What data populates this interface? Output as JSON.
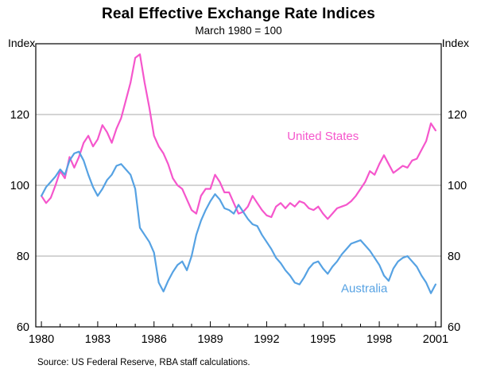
{
  "title": "Real Effective Exchange Rate Indices",
  "subtitle": "March 1980 = 100",
  "axis_unit_left": "Index",
  "axis_unit_right": "Index",
  "source": "Source: US Federal Reserve, RBA staff calculations.",
  "chart_data": {
    "type": "line",
    "title": "Real Effective Exchange Rate Indices",
    "subtitle": "March 1980 = 100",
    "xlabel": "",
    "ylabel": "Index",
    "xlim": [
      1979.7,
      2001.3
    ],
    "ylim": [
      60,
      140
    ],
    "y_ticks": [
      60,
      80,
      100,
      120
    ],
    "x_ticks": [
      1980,
      1983,
      1986,
      1989,
      1992,
      1995,
      1998,
      2001
    ],
    "grid": true,
    "grid_color": "#aaaaaa",
    "axis_color": "#000000",
    "legend_position": "inline-labels",
    "series": [
      {
        "name": "United States",
        "color": "#f556cc",
        "x_start": 1980.0,
        "x_step": 0.25,
        "label_pos": {
          "x": 1995.0,
          "y": 114
        },
        "values": [
          97,
          95,
          96.5,
          100,
          104,
          102,
          108,
          105,
          108,
          112,
          114,
          111,
          113,
          117,
          115,
          112,
          116,
          119,
          124,
          129,
          136,
          137,
          129,
          122,
          114,
          111,
          109,
          106,
          102,
          100,
          99,
          96,
          93,
          92,
          97,
          99,
          99,
          103,
          101,
          98,
          98,
          95,
          92,
          92.5,
          94,
          97,
          95,
          93,
          91.5,
          91,
          94,
          95,
          93.5,
          95,
          94,
          95.5,
          95,
          93.5,
          93,
          94,
          92,
          90.5,
          92,
          93.5,
          94,
          94.5,
          95.5,
          97,
          99,
          101,
          104,
          103,
          106,
          108.5,
          106,
          103.5,
          104.5,
          105.5,
          105,
          107,
          107.5,
          110,
          112.5,
          117.5,
          115.5
        ]
      },
      {
        "name": "Australia",
        "color": "#56a2e3",
        "x_start": 1980.0,
        "x_step": 0.25,
        "label_pos": {
          "x": 1997.2,
          "y": 71
        },
        "values": [
          97,
          99.5,
          101,
          102.5,
          104.5,
          103,
          107,
          109,
          109.5,
          107,
          103,
          99.5,
          97,
          99,
          101.5,
          103,
          105.5,
          106,
          104.5,
          103,
          99,
          88,
          86,
          84,
          81,
          72.5,
          70,
          73,
          75.5,
          77.5,
          78.5,
          76,
          80,
          86,
          90,
          93,
          95.5,
          97.5,
          96,
          93.5,
          93,
          92,
          94.5,
          92.5,
          90.5,
          89,
          88.5,
          86,
          84,
          82,
          79.5,
          78,
          76,
          74.5,
          72.5,
          72,
          74,
          76.5,
          78,
          78.5,
          76.5,
          75,
          77,
          78.5,
          80.5,
          82,
          83.5,
          84,
          84.5,
          83,
          81.5,
          79.5,
          77.5,
          74.5,
          73,
          76.5,
          78.5,
          79.5,
          80,
          78.5,
          77,
          74.5,
          72.5,
          69.5,
          72
        ]
      }
    ]
  }
}
